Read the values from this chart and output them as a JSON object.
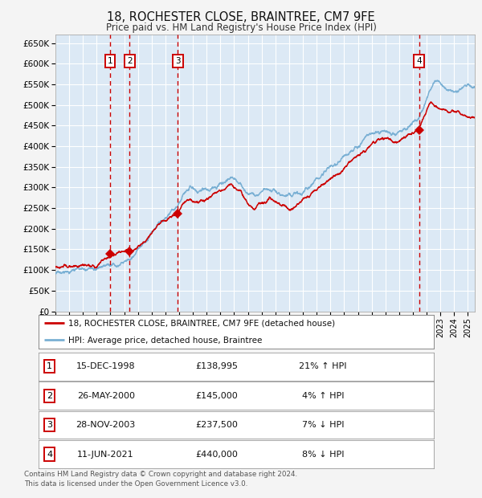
{
  "title": "18, ROCHESTER CLOSE, BRAINTREE, CM7 9FE",
  "subtitle": "Price paid vs. HM Land Registry's House Price Index (HPI)",
  "title_fontsize": 10.5,
  "subtitle_fontsize": 8.5,
  "fig_bg_color": "#f4f4f4",
  "plot_bg_color": "#dce9f5",
  "grid_color": "#ffffff",
  "ylim": [
    0,
    670000
  ],
  "yticks": [
    0,
    50000,
    100000,
    150000,
    200000,
    250000,
    300000,
    350000,
    400000,
    450000,
    500000,
    550000,
    600000,
    650000
  ],
  "ytick_labels": [
    "£0",
    "£50K",
    "£100K",
    "£150K",
    "£200K",
    "£250K",
    "£300K",
    "£350K",
    "£400K",
    "£450K",
    "£500K",
    "£550K",
    "£600K",
    "£650K"
  ],
  "sale_dates_num": [
    1998.96,
    2000.4,
    2003.91,
    2021.44
  ],
  "sale_prices": [
    138995,
    145000,
    237500,
    440000
  ],
  "sale_labels": [
    "1",
    "2",
    "3",
    "4"
  ],
  "red_line_color": "#cc0000",
  "blue_line_color": "#7ab0d4",
  "vline_color": "#cc0000",
  "legend_entries": [
    "18, ROCHESTER CLOSE, BRAINTREE, CM7 9FE (detached house)",
    "HPI: Average price, detached house, Braintree"
  ],
  "table_rows": [
    [
      "1",
      "15-DEC-1998",
      "£138,995",
      "21% ↑ HPI"
    ],
    [
      "2",
      "26-MAY-2000",
      "£145,000",
      "4% ↑ HPI"
    ],
    [
      "3",
      "28-NOV-2003",
      "£237,500",
      "7% ↓ HPI"
    ],
    [
      "4",
      "11-JUN-2021",
      "£440,000",
      "8% ↓ HPI"
    ]
  ],
  "footer": "Contains HM Land Registry data © Crown copyright and database right 2024.\nThis data is licensed under the Open Government Licence v3.0.",
  "xmin": 1995.0,
  "xmax": 2025.5
}
